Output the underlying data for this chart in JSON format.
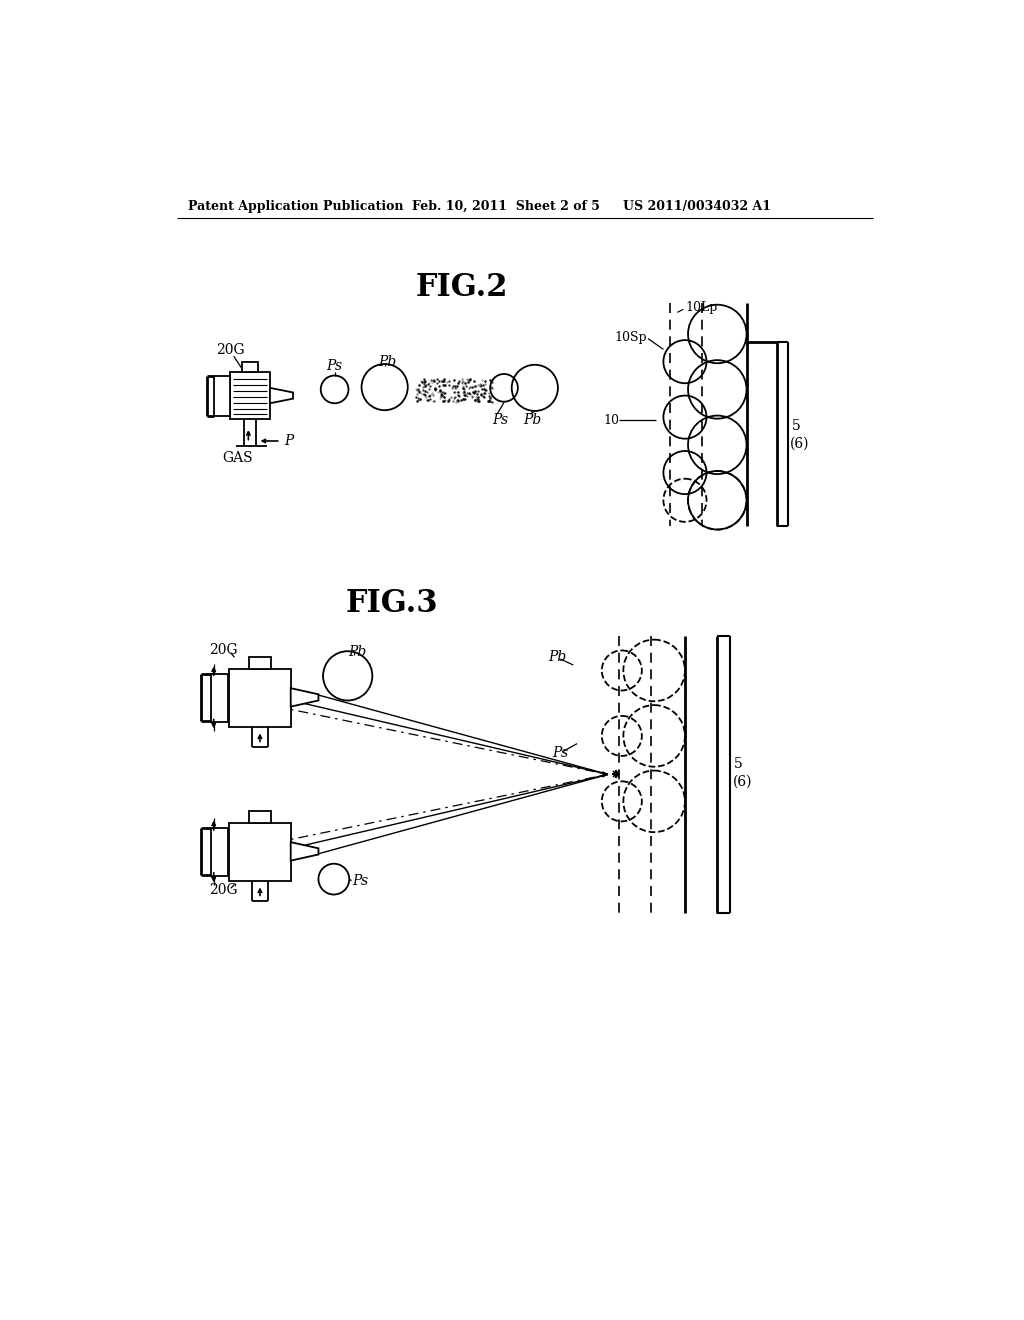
{
  "bg_color": "#ffffff",
  "header_left": "Patent Application Publication",
  "header_mid": "Feb. 10, 2011  Sheet 2 of 5",
  "header_right": "US 2011/0034032 A1",
  "fig2_title": "FIG.2",
  "fig3_title": "FIG.3"
}
